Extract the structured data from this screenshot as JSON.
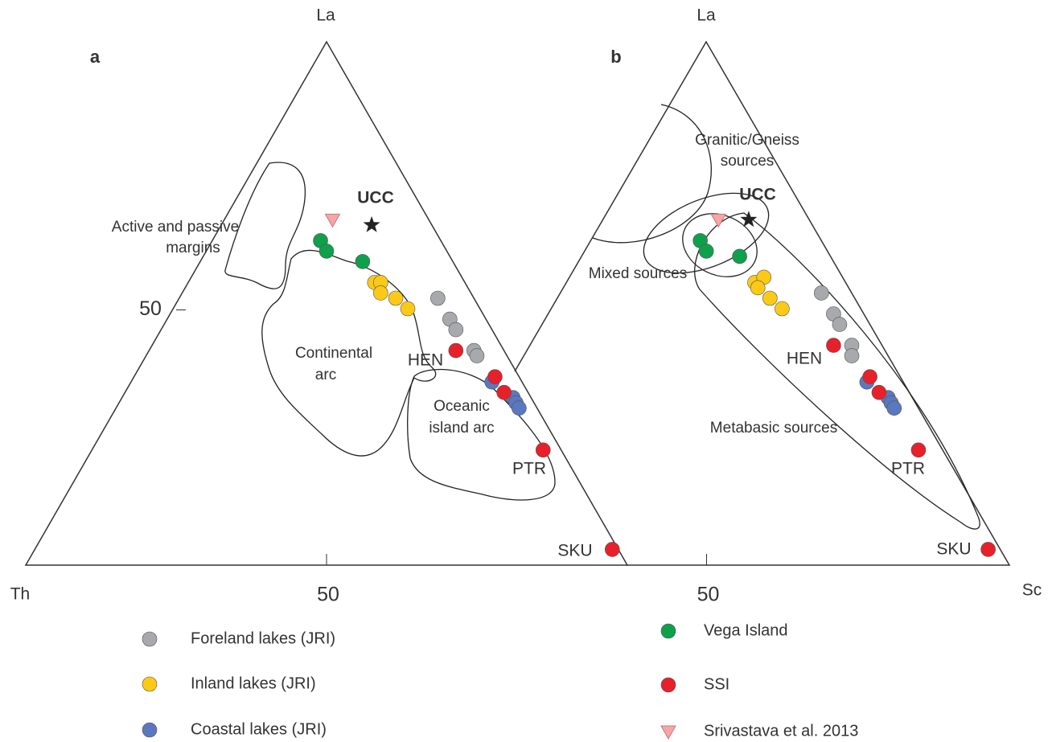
{
  "chart_data": [
    {
      "type": "ternary",
      "panel_label": "a",
      "corners": {
        "top": "La",
        "left": "Th"
      },
      "left_ticks": [
        50
      ],
      "bottom_ticks": [
        50
      ],
      "regions": [
        {
          "label": [
            "Active and passive",
            "margins"
          ]
        },
        {
          "label": [
            "Continental",
            "arc"
          ]
        },
        {
          "label": [
            "Oceanic",
            "island arc"
          ]
        }
      ],
      "annotations": [
        "HEN",
        "PTR",
        "SKU"
      ],
      "reference": {
        "label": "UCC",
        "la": 65,
        "th": 10,
        "sc": 25
      },
      "series": [
        {
          "name": "Foreland lakes (JRI)",
          "color": "#a7a9ac",
          "marker": "circle",
          "la": [
            51,
            47,
            45,
            41,
            40
          ],
          "th": [
            6,
            6,
            6,
            5,
            5
          ],
          "sc": [
            43,
            47,
            49,
            54,
            55
          ]
        },
        {
          "name": "Inland lakes (JRI)",
          "color": "#fcc917",
          "marker": "circle",
          "la": [
            54,
            54,
            52,
            51,
            49
          ],
          "th": [
            15,
            14,
            15,
            13,
            12
          ],
          "sc": [
            31,
            32,
            33,
            36,
            39
          ]
        },
        {
          "name": "Coastal lakes (JRI)",
          "color": "#5a78bf",
          "marker": "circle",
          "la": [
            35,
            32,
            31,
            30
          ],
          "th": [
            5,
            3,
            3,
            3
          ],
          "sc": [
            60,
            65,
            66,
            67
          ]
        },
        {
          "name": "Vega Island",
          "color": "#0fa04b",
          "marker": "circle",
          "la": [
            62,
            60,
            58
          ],
          "th": [
            20,
            20,
            15
          ],
          "sc": [
            18,
            20,
            27
          ]
        },
        {
          "name": "SSI",
          "color": "#e8202a",
          "marker": "circle",
          "la": [
            41,
            36,
            33,
            22,
            3
          ],
          "th": [
            8,
            4,
            4,
            3,
            1
          ],
          "sc": [
            51,
            60,
            63,
            75,
            96
          ]
        },
        {
          "name": "Srivastava et al. 2013",
          "color": "#f4a6a8",
          "marker": "triangle",
          "la": [
            66
          ],
          "th": [
            16
          ],
          "sc": [
            18
          ]
        }
      ]
    },
    {
      "type": "ternary",
      "panel_label": "b",
      "corners": {
        "top": "La",
        "right": "Sc"
      },
      "bottom_ticks": [
        50
      ],
      "regions": [
        {
          "label": [
            "Granitic/Gneiss",
            "sources"
          ]
        },
        {
          "label": [
            "Mixed sources"
          ]
        },
        {
          "label": [
            "Metabasic sources"
          ]
        }
      ],
      "annotations": [
        "HEN",
        "PTR",
        "SKU"
      ],
      "reference": {
        "label": "UCC",
        "la": 66,
        "th": 10,
        "sc": 24
      },
      "series": [
        {
          "color": "#a7a9ac",
          "marker": "circle",
          "la": [
            52,
            48,
            46,
            42,
            40
          ],
          "th": [
            5,
            5,
            5,
            5,
            6
          ],
          "sc": [
            43,
            47,
            49,
            53,
            54
          ]
        },
        {
          "color": "#fcc917",
          "marker": "circle",
          "la": [
            54,
            55,
            53,
            51,
            49
          ],
          "th": [
            15,
            13,
            15,
            14,
            13
          ],
          "sc": [
            31,
            32,
            32,
            35,
            38
          ]
        },
        {
          "color": "#5a78bf",
          "marker": "circle",
          "la": [
            35,
            32,
            31,
            30
          ],
          "th": [
            6,
            4,
            4,
            4
          ],
          "sc": [
            59,
            64,
            65,
            66
          ]
        },
        {
          "color": "#0fa04b",
          "marker": "circle",
          "la": [
            62,
            60,
            59
          ],
          "th": [
            20,
            20,
            15
          ],
          "sc": [
            18,
            20,
            26
          ]
        },
        {
          "color": "#e8202a",
          "marker": "circle",
          "la": [
            42,
            36,
            33,
            22,
            3
          ],
          "th": [
            8,
            5,
            5,
            4,
            2
          ],
          "sc": [
            50,
            59,
            62,
            74,
            95
          ]
        },
        {
          "color": "#f4a6a8",
          "marker": "triangle",
          "la": [
            66
          ],
          "th": [
            15
          ],
          "sc": [
            19
          ]
        }
      ]
    }
  ]
}
